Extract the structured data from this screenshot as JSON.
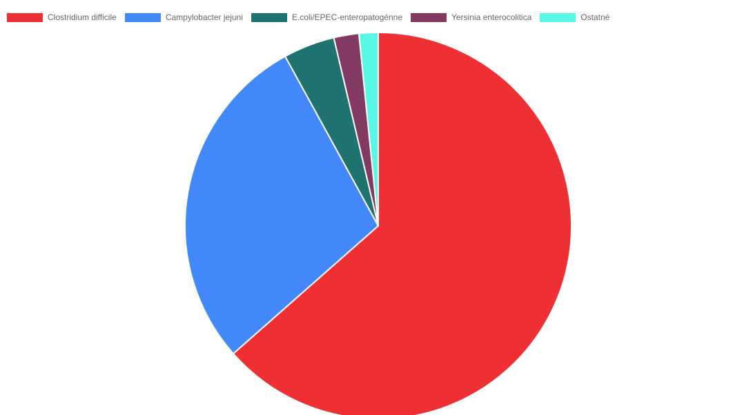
{
  "chart_data": {
    "type": "pie",
    "title": "",
    "legend_position": "top",
    "slices": [
      {
        "name": "Clostridium difficile",
        "value": 63.5,
        "color": "#ee2f34"
      },
      {
        "name": "Campylobacter jejuni",
        "value": 28.5,
        "color": "#4388f8"
      },
      {
        "name": "E.coli/EPEC-enteropatogénne",
        "value": 4.3,
        "color": "#1e7370"
      },
      {
        "name": "Yersinia enterocolitica",
        "value": 2.1,
        "color": "#823962"
      },
      {
        "name": "Ostatné",
        "value": 1.6,
        "color": "#59f8e6"
      }
    ]
  }
}
